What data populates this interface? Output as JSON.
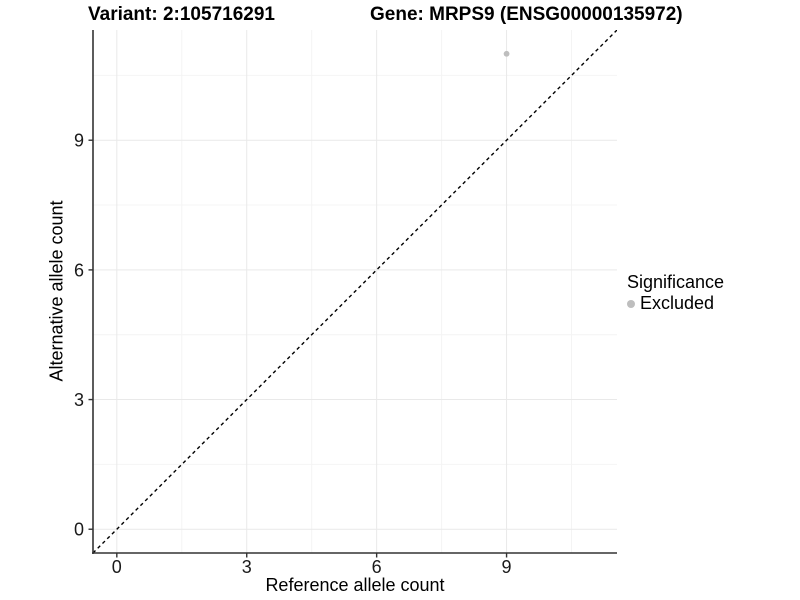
{
  "header": {
    "left_title": "Variant: 2:105716291",
    "right_title": "Gene: MRPS9 (ENSG00000135972)"
  },
  "chart_data": {
    "type": "scatter",
    "title": "Variant: 2:105716291  /  Gene: MRPS9 (ENSG00000135972)",
    "xlabel": "Reference allele count",
    "ylabel": "Alternative allele count",
    "xlim": [
      -0.55,
      11.55
    ],
    "ylim": [
      -0.55,
      11.55
    ],
    "x_ticks": [
      0,
      3,
      6,
      9
    ],
    "y_ticks": [
      0,
      3,
      6,
      9
    ],
    "x_minor_gridlines": [
      1.5,
      4.5,
      7.5,
      10.5
    ],
    "y_minor_gridlines": [
      1.5,
      4.5,
      7.5,
      10.5
    ],
    "grid": true,
    "series": [
      {
        "name": "Excluded",
        "points": [
          {
            "x": 9,
            "y": 11
          }
        ],
        "color": "#bebebe"
      }
    ],
    "reference_line": {
      "type": "identity",
      "slope": 1,
      "intercept": 0,
      "style": "dashed",
      "color": "#000000"
    },
    "legend": {
      "title": "Significance",
      "position": "right",
      "items": [
        {
          "label": "Excluded",
          "color": "#bebebe"
        }
      ]
    },
    "colors": {
      "background": "#ffffff",
      "grid_major": "#e9e9e9",
      "grid_minor": "#f4f4f4",
      "axis_line": "#333333",
      "tick_label": "#1a1a1a",
      "point": "#bebebe"
    }
  }
}
